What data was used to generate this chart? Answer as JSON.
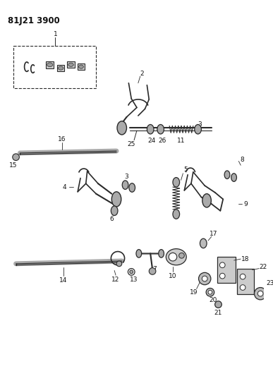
{
  "title": "81J21 3900",
  "bg_color": "#ffffff",
  "line_color": "#2a2a2a",
  "text_color": "#111111",
  "title_fontsize": 8.5,
  "label_fontsize": 6.5,
  "fig_width": 3.87,
  "fig_height": 5.33,
  "dpi": 100
}
